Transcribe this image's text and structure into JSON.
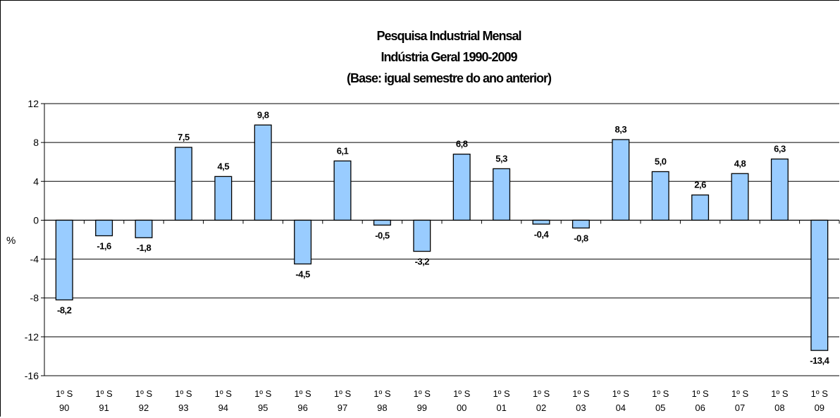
{
  "chart_data": {
    "type": "bar",
    "title": [
      "Pesquisa Industrial Mensal",
      "Indústria Geral  1990-2009",
      "(Base: igual semestre do ano anterior)"
    ],
    "ylabel": "%",
    "xlabel": "",
    "ylim": [
      -16,
      12
    ],
    "yticks": [
      "12",
      "8",
      "4",
      "0",
      "-4",
      "-8",
      "-12",
      "-16"
    ],
    "ytick_values": [
      12,
      8,
      4,
      0,
      -4,
      -8,
      -12,
      -16
    ],
    "grid": true,
    "bar_color": "#99CCFF",
    "categories": [
      [
        "1º S",
        "90"
      ],
      [
        "1º S",
        "91"
      ],
      [
        "1º S",
        "92"
      ],
      [
        "1º S",
        "93"
      ],
      [
        "1º S",
        "94"
      ],
      [
        "1º S",
        "95"
      ],
      [
        "1º S",
        "96"
      ],
      [
        "1º S",
        "97"
      ],
      [
        "1º S",
        "98"
      ],
      [
        "1º S",
        "99"
      ],
      [
        "1º S",
        "00"
      ],
      [
        "1º S",
        "01"
      ],
      [
        "1º S",
        "02"
      ],
      [
        "1º S",
        "03"
      ],
      [
        "1º S",
        "04"
      ],
      [
        "1º S",
        "05"
      ],
      [
        "1º S",
        "06"
      ],
      [
        "1º S",
        "07"
      ],
      [
        "1º S",
        "08"
      ],
      [
        "1º S",
        "09"
      ]
    ],
    "values": [
      -8.2,
      -1.6,
      -1.8,
      7.5,
      4.5,
      9.8,
      -4.5,
      6.1,
      -0.5,
      -3.2,
      6.8,
      5.3,
      -0.4,
      -0.8,
      8.3,
      5.0,
      2.6,
      4.8,
      6.3,
      -13.4
    ],
    "value_labels": [
      "-8,2",
      "-1,6",
      "-1,8",
      "7,5",
      "4,5",
      "9,8",
      "-4,5",
      "6,1",
      "-0,5",
      "-3,2",
      "6,8",
      "5,3",
      "-0,4",
      "-0,8",
      "8,3",
      "5,0",
      "2,6",
      "4,8",
      "6,3",
      "-13,4"
    ]
  }
}
